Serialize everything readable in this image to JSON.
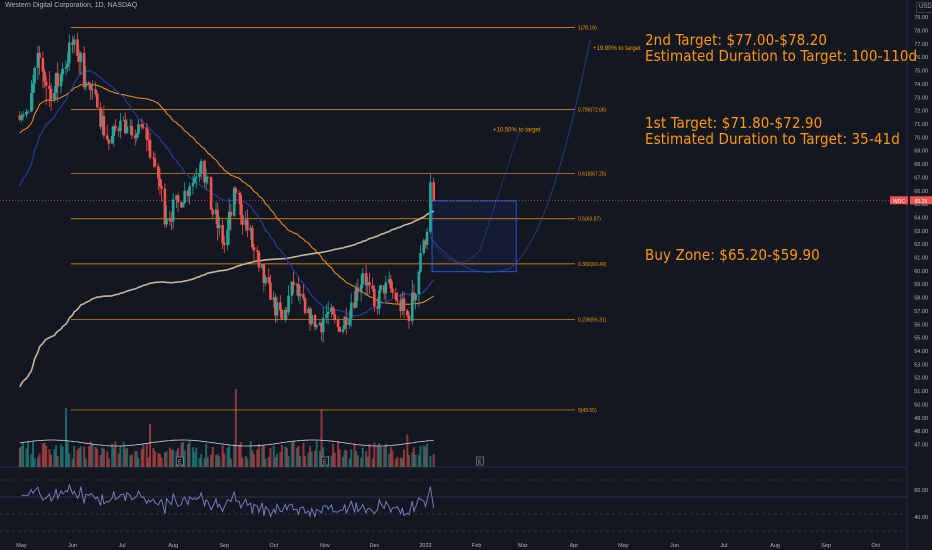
{
  "header": {
    "title": "Western Digital Corporation, 1D, NASDAQ",
    "currency": "USD"
  },
  "notes": {
    "target2_line1": "2nd Target: $77.00-$78.20",
    "target2_line2": "Estimated Duration to Target: 100-110d",
    "target1_line1": "1st Target: $71.80-$72.90",
    "target1_line2": "Estimated Duration to Target: 35-41d",
    "buy_zone": "Buy Zone: $65.20-$59.90"
  },
  "colors": {
    "background": "#131722",
    "up": "#26a69a",
    "down": "#ef5350",
    "fib": "#ff9800",
    "ma_slow": "#c9b59a",
    "ma_mid": "#f7931a",
    "ma_fast": "#283593",
    "rsi": "#7e80c9",
    "box_border": "#2962ff",
    "current_price": "#ef5350",
    "curve": "#3949ab"
  },
  "chart_data": {
    "type": "candlestick",
    "symbol": "WDC",
    "current_price": "65.25",
    "y_ticks": [
      "79.00",
      "78.00",
      "77.00",
      "76.00",
      "75.00",
      "74.00",
      "73.00",
      "72.00",
      "71.00",
      "70.00",
      "69.00",
      "68.00",
      "67.00",
      "66.00",
      "65.00",
      "64.00",
      "63.00",
      "62.00",
      "61.00",
      "60.00",
      "59.00",
      "58.00",
      "57.00",
      "56.00",
      "55.00",
      "54.00",
      "53.00",
      "52.00",
      "51.00",
      "50.00",
      "49.00",
      "48.00",
      "47.00"
    ],
    "rsi_ticks": [
      "60.00",
      "40.00"
    ],
    "x_ticks": [
      "May",
      "Jun",
      "Jul",
      "Aug",
      "Sep",
      "Oct",
      "Nov",
      "Dec",
      "2022",
      "Feb",
      "Mar",
      "Apr",
      "May",
      "Jun",
      "Jul",
      "Aug",
      "Sep",
      "Oct"
    ],
    "fib_levels": [
      {
        "ratio": 1,
        "price": 78.19,
        "label": "1(78.19)"
      },
      {
        "ratio": 0.786,
        "price": 72.06,
        "label": "0.786(72.06)"
      },
      {
        "ratio": 0.618,
        "price": 67.25,
        "label": "0.618(67.25)"
      },
      {
        "ratio": 0.5,
        "price": 63.87,
        "label": "0.5(63.87)"
      },
      {
        "ratio": 0.382,
        "price": 60.49,
        "label": "0.382(60.49)"
      },
      {
        "ratio": 0.236,
        "price": 56.31,
        "label": "0.236(56.31)"
      },
      {
        "ratio": 0,
        "price": 49.55,
        "label": "0(49.55)"
      }
    ],
    "annotations": [
      "+19.80% to target",
      "+10.50% to target"
    ],
    "buy_zone": {
      "start": "2022-01-05",
      "end": "2022-02-25",
      "high": 65.2,
      "low": 59.9
    },
    "event_markers": [
      "E",
      "E",
      "E"
    ],
    "ohlc_sampled": [
      [
        "2021-04-30",
        71.6,
        72.3,
        70.8,
        71.9
      ],
      [
        "2021-05-07",
        71.9,
        76.8,
        71.2,
        75.9
      ],
      [
        "2021-05-14",
        75.9,
        76.5,
        70.4,
        72.8
      ],
      [
        "2021-05-21",
        72.8,
        77.2,
        72.1,
        75.1
      ],
      [
        "2021-05-28",
        75.1,
        78.19,
        74.6,
        77.3
      ],
      [
        "2021-06-04",
        77.3,
        77.8,
        73.0,
        74.1
      ],
      [
        "2021-06-11",
        74.1,
        74.9,
        71.8,
        72.2
      ],
      [
        "2021-06-18",
        72.2,
        72.6,
        69.0,
        69.5
      ],
      [
        "2021-06-25",
        69.5,
        71.9,
        68.8,
        71.2
      ],
      [
        "2021-07-02",
        71.2,
        72.1,
        69.6,
        70.1
      ],
      [
        "2021-07-09",
        70.1,
        71.4,
        68.9,
        70.7
      ],
      [
        "2021-07-16",
        70.7,
        71.0,
        67.5,
        67.8
      ],
      [
        "2021-07-23",
        67.8,
        68.4,
        63.2,
        63.9
      ],
      [
        "2021-07-30",
        63.9,
        65.8,
        62.5,
        65.1
      ],
      [
        "2021-08-06",
        65.1,
        66.9,
        64.2,
        66.3
      ],
      [
        "2021-08-13",
        66.3,
        68.9,
        65.7,
        68.2
      ],
      [
        "2021-08-20",
        68.2,
        68.5,
        63.6,
        64.2
      ],
      [
        "2021-08-27",
        64.2,
        65.1,
        61.3,
        61.9
      ],
      [
        "2021-09-03",
        61.9,
        66.3,
        61.5,
        65.8
      ],
      [
        "2021-09-10",
        65.8,
        66.0,
        62.4,
        63.0
      ],
      [
        "2021-09-17",
        63.0,
        63.4,
        59.4,
        60.2
      ],
      [
        "2021-09-24",
        60.2,
        60.9,
        57.2,
        57.8
      ],
      [
        "2021-10-01",
        57.8,
        58.8,
        55.7,
        56.3
      ],
      [
        "2021-10-08",
        56.3,
        59.9,
        56.1,
        58.9
      ],
      [
        "2021-10-15",
        58.9,
        59.5,
        56.2,
        56.8
      ],
      [
        "2021-10-22",
        56.8,
        57.3,
        55.1,
        55.9
      ],
      [
        "2021-10-29",
        55.9,
        57.7,
        53.6,
        56.9
      ],
      [
        "2021-11-05",
        56.9,
        57.5,
        54.8,
        55.4
      ],
      [
        "2021-11-12",
        55.4,
        58.3,
        55.0,
        57.6
      ],
      [
        "2021-11-19",
        57.6,
        60.5,
        57.1,
        59.8
      ],
      [
        "2021-11-26",
        59.8,
        60.4,
        56.9,
        57.3
      ],
      [
        "2021-12-03",
        57.3,
        59.8,
        56.7,
        59.1
      ],
      [
        "2021-12-10",
        59.1,
        60.2,
        57.3,
        57.7
      ],
      [
        "2021-12-17",
        57.7,
        58.9,
        55.3,
        56.2
      ],
      [
        "2021-12-24",
        56.2,
        61.9,
        55.9,
        61.3
      ],
      [
        "2021-12-31",
        61.3,
        63.2,
        60.8,
        62.9
      ],
      [
        "2022-01-04",
        62.9,
        67.25,
        62.7,
        66.6
      ],
      [
        "2022-01-06",
        66.6,
        66.9,
        65.0,
        65.25
      ]
    ]
  }
}
